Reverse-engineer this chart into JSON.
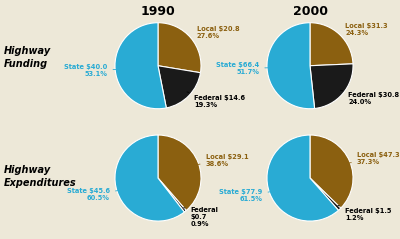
{
  "title_1990": "1990",
  "title_2000": "2000",
  "row_label_0": "Highway\nFunding",
  "row_label_1": "Highway\nExpenditures",
  "background_color": "#ede8d8",
  "charts": {
    "funding_1990": {
      "slices": [
        27.6,
        19.3,
        53.1
      ],
      "labels": [
        "Local $20.8\n27.6%",
        "Federal $14.6\n19.3%",
        "State $40.0\n53.1%"
      ],
      "colors": [
        "#8B6010",
        "#1a1a1a",
        "#29ABD4"
      ],
      "label_colors": [
        "#8B6010",
        "#000000",
        "#29ABD4"
      ],
      "startangle": 90
    },
    "funding_2000": {
      "slices": [
        24.3,
        24.0,
        51.7
      ],
      "labels": [
        "Local $31.3\n24.3%",
        "Federal $30.8\n24.0%",
        "State $66.4\n51.7%"
      ],
      "colors": [
        "#8B6010",
        "#1a1a1a",
        "#29ABD4"
      ],
      "label_colors": [
        "#8B6010",
        "#000000",
        "#29ABD4"
      ],
      "startangle": 90
    },
    "expenditures_1990": {
      "slices": [
        38.6,
        0.9,
        60.5
      ],
      "labels": [
        "Local $29.1\n38.6%",
        "Federal\n$0.7\n0.9%",
        "State $45.6\n60.5%"
      ],
      "colors": [
        "#8B6010",
        "#1a1a1a",
        "#29ABD4"
      ],
      "label_colors": [
        "#8B6010",
        "#000000",
        "#29ABD4"
      ],
      "startangle": 90
    },
    "expenditures_2000": {
      "slices": [
        37.3,
        1.2,
        61.5
      ],
      "labels": [
        "Local $47.3\n37.3%",
        "Federal $1.5\n1.2%",
        "State $77.9\n61.5%"
      ],
      "colors": [
        "#8B6010",
        "#1a1a1a",
        "#29ABD4"
      ],
      "label_colors": [
        "#8B6010",
        "#000000",
        "#29ABD4"
      ],
      "startangle": 90
    }
  },
  "label_offsets": {
    "funding_1990": [
      [
        1.35,
        0.25,
        "left"
      ],
      [
        1.3,
        -0.15,
        "left"
      ],
      [
        -1.35,
        0.0,
        "right"
      ]
    ],
    "funding_2000": [
      [
        1.3,
        0.2,
        "left"
      ],
      [
        1.3,
        -0.15,
        "left"
      ],
      [
        -1.35,
        0.05,
        "right"
      ]
    ],
    "expenditures_1990": [
      [
        1.3,
        0.2,
        "left"
      ],
      [
        1.35,
        -0.1,
        "left"
      ],
      [
        -1.35,
        -0.15,
        "right"
      ]
    ],
    "expenditures_2000": [
      [
        1.3,
        0.2,
        "left"
      ],
      [
        1.35,
        -0.05,
        "left"
      ],
      [
        0.0,
        -1.4,
        "center"
      ]
    ]
  }
}
